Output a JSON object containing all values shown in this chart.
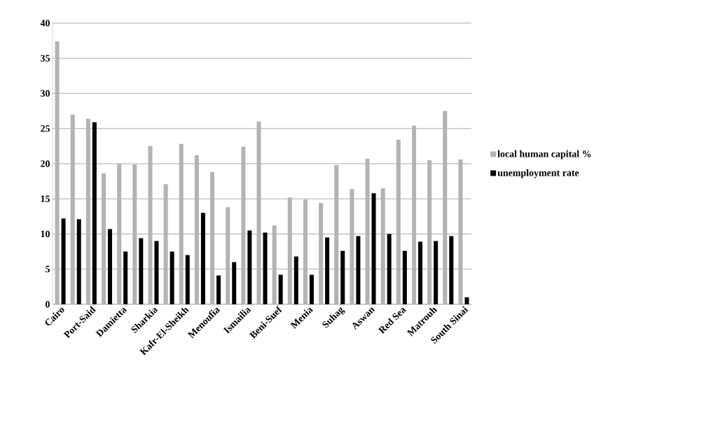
{
  "chart_data": {
    "type": "bar",
    "categories": [
      "Cairo",
      null,
      "Port-Said",
      null,
      "Damietta",
      null,
      "Sharkia",
      null,
      "Kafr-El-Sheikh",
      null,
      "Menoufia",
      null,
      "Ismailia",
      null,
      "Beni-Suef",
      null,
      "Menia",
      null,
      "Suhag",
      null,
      "Aswan",
      null,
      "Red Sea",
      null,
      "Matrouh",
      null,
      "South Sinai"
    ],
    "series": [
      {
        "name": "local human capital %",
        "color": "#b3b3b3",
        "values": [
          37.4,
          27.0,
          26.4,
          18.6,
          20.0,
          19.9,
          22.5,
          17.1,
          22.8,
          21.2,
          18.8,
          13.8,
          22.4,
          26.0,
          11.2,
          15.2,
          14.9,
          14.4,
          19.8,
          16.4,
          20.7,
          16.5,
          23.4,
          25.4,
          20.5,
          27.5,
          20.6
        ]
      },
      {
        "name": "unemployment rate",
        "color": "#000000",
        "values": [
          12.2,
          12.1,
          25.9,
          10.7,
          7.5,
          9.4,
          9.0,
          7.5,
          7.0,
          13.0,
          4.1,
          6.0,
          10.5,
          10.2,
          4.2,
          6.8,
          4.2,
          9.5,
          7.6,
          9.7,
          15.8,
          10.0,
          7.6,
          8.9,
          9.0,
          9.7,
          1.0
        ]
      }
    ],
    "ylim": [
      0,
      40
    ],
    "yticks": [
      0,
      5,
      10,
      15,
      20,
      25,
      30,
      35,
      40
    ],
    "grid": "y",
    "legend": "right"
  }
}
